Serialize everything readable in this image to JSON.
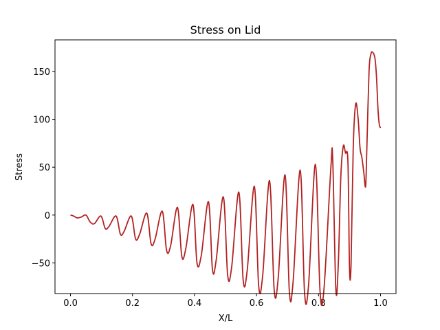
{
  "chart_data": {
    "type": "line",
    "title": "Stress on Lid",
    "xlabel": "X/L",
    "ylabel": "Stress",
    "xlim": [
      -0.05,
      1.05
    ],
    "ylim": [
      -82,
      183
    ],
    "grid": false,
    "x_ticks": [
      0.0,
      0.2,
      0.4,
      0.6,
      0.8,
      1.0
    ],
    "x_tick_labels": [
      "0.0",
      "0.2",
      "0.4",
      "0.6",
      "0.8",
      "1.0"
    ],
    "y_ticks": [
      -50,
      0,
      50,
      100,
      150
    ],
    "y_tick_labels": [
      "−50",
      "0",
      "50",
      "100",
      "150"
    ],
    "series": [
      {
        "color": "#b22222",
        "x": [
          0.0,
          0.01,
          0.022,
          0.035,
          0.05,
          0.063,
          0.077,
          0.098,
          0.112,
          0.124,
          0.147,
          0.161,
          0.173,
          0.196,
          0.21,
          0.223,
          0.246,
          0.26,
          0.273,
          0.296,
          0.31,
          0.323,
          0.345,
          0.359,
          0.372,
          0.395,
          0.408,
          0.422,
          0.445,
          0.458,
          0.47,
          0.493,
          0.507,
          0.52,
          0.543,
          0.557,
          0.57,
          0.593,
          0.607,
          0.62,
          0.642,
          0.657,
          0.67,
          0.692,
          0.706,
          0.718,
          0.741,
          0.755,
          0.768,
          0.79,
          0.805,
          0.818,
          0.84,
          0.846,
          0.856,
          0.864,
          0.872,
          0.88,
          0.887,
          0.895,
          0.9,
          0.905,
          0.912,
          0.92,
          0.928,
          0.934,
          0.94,
          0.946,
          0.952,
          0.956,
          0.963,
          0.969,
          0.975,
          0.982,
          0.987,
          0.992,
          0.996,
          1.0
        ],
        "y": [
          0,
          -1,
          -3,
          -2,
          0,
          -7,
          -9,
          -1,
          -14,
          -12,
          -1,
          -20,
          -17,
          -1,
          -25,
          -20,
          2,
          -30,
          -25,
          4,
          -37,
          -32,
          8,
          -43,
          -35,
          11,
          -50,
          -42,
          14,
          -57,
          -47,
          19,
          -63,
          -54,
          24,
          -68,
          -58,
          30,
          -74,
          -63,
          36,
          -78,
          -66,
          42,
          -80,
          -70,
          47,
          -81,
          -73,
          53,
          -80,
          -76,
          50,
          57,
          -78,
          -50,
          40,
          72,
          65,
          55,
          -55,
          -52,
          70,
          116,
          100,
          70,
          60,
          45,
          30,
          70,
          150,
          168,
          170,
          164,
          145,
          110,
          95,
          91
        ]
      }
    ]
  }
}
